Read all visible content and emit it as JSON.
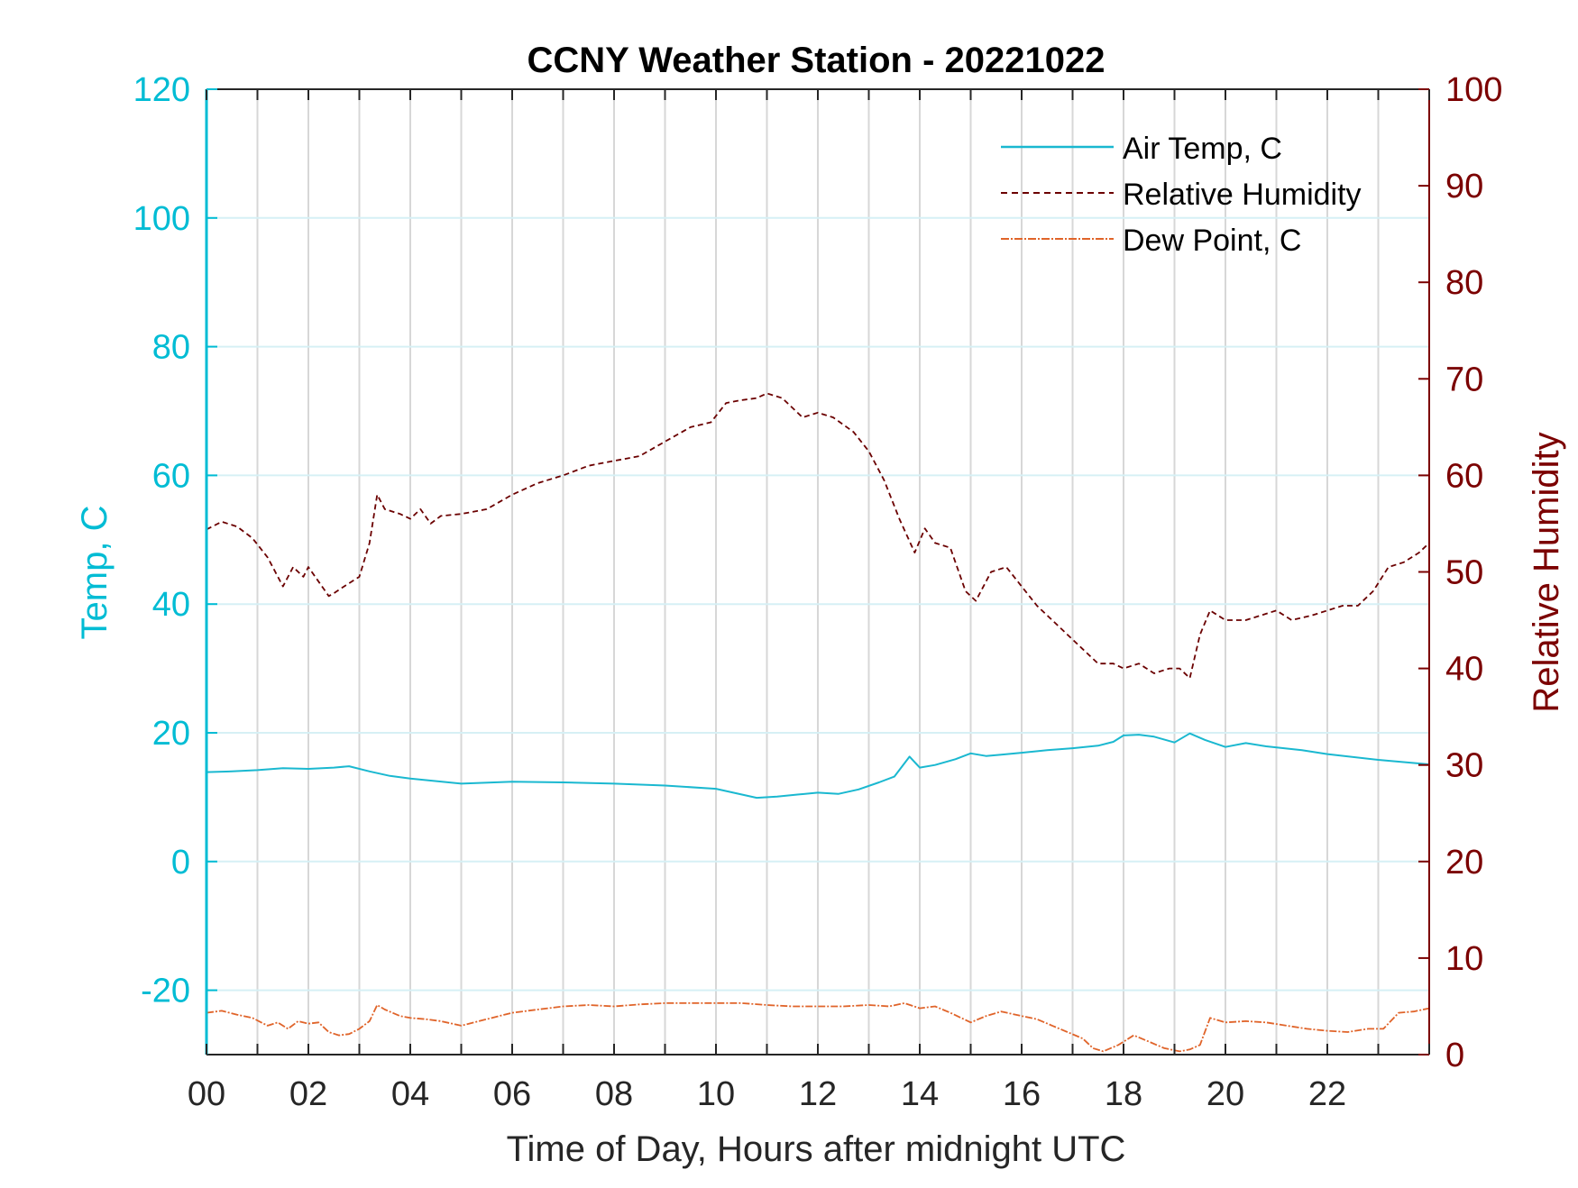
{
  "chart_data": {
    "type": "line",
    "title": "CCNY Weather Station - 20221022",
    "xlabel": "Time of Day, Hours after midnight UTC",
    "ylabel_left": "Temp, C",
    "ylabel_right": "Relative Humidity",
    "xlim": [
      0,
      24
    ],
    "ylim_left": [
      -30,
      120
    ],
    "ylim_right": [
      0,
      100
    ],
    "x_ticks": [
      0,
      2,
      4,
      6,
      8,
      10,
      12,
      14,
      16,
      18,
      20,
      22
    ],
    "x_tick_labels": [
      "00",
      "02",
      "04",
      "06",
      "08",
      "10",
      "12",
      "14",
      "16",
      "18",
      "20",
      "22"
    ],
    "y_left_ticks": [
      -20,
      0,
      20,
      40,
      60,
      80,
      100,
      120
    ],
    "y_left_tick_labels": [
      "-20",
      "0",
      "20",
      "40",
      "60",
      "80",
      "100",
      "120"
    ],
    "y_right_ticks": [
      0,
      10,
      20,
      30,
      40,
      50,
      60,
      70,
      80,
      90,
      100
    ],
    "y_right_tick_labels": [
      "0",
      "10",
      "20",
      "30",
      "40",
      "50",
      "60",
      "70",
      "80",
      "90",
      "100"
    ],
    "grid": true,
    "legend_position": "top-right",
    "colors": {
      "left_axis": "#00bcd4",
      "right_axis": "#7b0000",
      "air_temp": "#1ab8d0",
      "humidity": "#6b0000",
      "dew_point": "#e0642a",
      "grid_vertical": "#d7d7d7",
      "grid_horizontal": "#d6f0f5"
    },
    "series": [
      {
        "name": "Air Temp, C",
        "axis": "left",
        "style": "solid",
        "x": [
          0,
          0.5,
          1,
          1.5,
          2,
          2.5,
          2.8,
          3.2,
          3.6,
          4,
          5,
          6,
          7,
          8,
          9,
          10,
          10.4,
          10.8,
          11.2,
          11.6,
          12,
          12.4,
          12.8,
          13.2,
          13.5,
          13.8,
          14.0,
          14.3,
          14.7,
          15.0,
          15.3,
          15.6,
          16,
          16.5,
          17,
          17.5,
          17.8,
          18.0,
          18.3,
          18.6,
          19.0,
          19.3,
          19.6,
          20.0,
          20.4,
          20.8,
          21.5,
          22,
          23,
          24
        ],
        "y": [
          13.9,
          14.0,
          14.2,
          14.5,
          14.4,
          14.6,
          14.8,
          14.0,
          13.3,
          12.9,
          12.1,
          12.4,
          12.3,
          12.1,
          11.8,
          11.3,
          10.6,
          9.9,
          10.1,
          10.4,
          10.7,
          10.5,
          11.2,
          12.3,
          13.2,
          16.3,
          14.6,
          15.0,
          15.9,
          16.8,
          16.4,
          16.6,
          16.9,
          17.3,
          17.6,
          18.0,
          18.6,
          19.6,
          19.7,
          19.4,
          18.5,
          19.9,
          18.9,
          17.8,
          18.4,
          17.9,
          17.3,
          16.7,
          15.8,
          15.1
        ]
      },
      {
        "name": "Relative Humidity",
        "axis": "right",
        "style": "dashed",
        "x": [
          0,
          0.3,
          0.6,
          0.9,
          1.2,
          1.5,
          1.7,
          1.9,
          2.0,
          2.2,
          2.4,
          2.5,
          2.7,
          3.0,
          3.2,
          3.35,
          3.5,
          3.8,
          4.0,
          4.2,
          4.4,
          4.6,
          5.0,
          5.5,
          6.0,
          6.5,
          7.0,
          7.5,
          8.0,
          8.5,
          9.0,
          9.5,
          9.9,
          10.2,
          10.5,
          10.8,
          11.0,
          11.3,
          11.7,
          12.0,
          12.3,
          12.7,
          13.0,
          13.3,
          13.6,
          13.9,
          14.1,
          14.3,
          14.6,
          14.9,
          15.1,
          15.4,
          15.7,
          16.0,
          16.3,
          16.6,
          16.9,
          17.2,
          17.5,
          17.8,
          18.0,
          18.3,
          18.6,
          18.9,
          19.1,
          19.3,
          19.5,
          19.7,
          20.0,
          20.4,
          20.7,
          21.0,
          21.3,
          21.7,
          22.0,
          22.3,
          22.6,
          22.9,
          23.2,
          23.5,
          23.8,
          24
        ],
        "y": [
          54.4,
          55.2,
          54.7,
          53.5,
          51.5,
          48.5,
          50.5,
          49.5,
          50.5,
          49.0,
          47.5,
          47.8,
          48.5,
          49.5,
          53.0,
          58.0,
          56.5,
          56.0,
          55.5,
          56.5,
          55.0,
          55.8,
          56.0,
          56.5,
          58.0,
          59.2,
          60.0,
          61.0,
          61.5,
          62.0,
          63.5,
          65.0,
          65.5,
          67.5,
          67.8,
          68.0,
          68.5,
          68.0,
          66.0,
          66.5,
          66.0,
          64.5,
          62.5,
          59.5,
          55.5,
          52.0,
          54.5,
          53.0,
          52.5,
          48.0,
          47.0,
          50.0,
          50.5,
          48.5,
          46.5,
          45.0,
          43.5,
          42.0,
          40.5,
          40.5,
          40.0,
          40.5,
          39.5,
          40.0,
          40.0,
          39.0,
          43.5,
          46.0,
          45.0,
          45.0,
          45.5,
          46.0,
          45.0,
          45.5,
          46.0,
          46.5,
          46.5,
          48.0,
          50.5,
          51.0,
          52.0,
          53.0
        ]
      },
      {
        "name": "Dew Point, C",
        "axis": "left",
        "style": "dashdot",
        "x": [
          0,
          0.3,
          0.6,
          0.9,
          1.2,
          1.4,
          1.6,
          1.8,
          2.0,
          2.2,
          2.4,
          2.6,
          2.8,
          3.0,
          3.2,
          3.35,
          3.5,
          3.8,
          4.0,
          4.3,
          4.6,
          5.0,
          5.5,
          6.0,
          6.5,
          7.0,
          7.5,
          8.0,
          8.5,
          9.0,
          9.5,
          10.0,
          10.5,
          11.0,
          11.5,
          12.0,
          12.5,
          13.0,
          13.4,
          13.7,
          14.0,
          14.3,
          14.6,
          15.0,
          15.3,
          15.6,
          16.0,
          16.3,
          16.6,
          16.9,
          17.2,
          17.4,
          17.6,
          17.9,
          18.2,
          18.5,
          18.8,
          19.1,
          19.3,
          19.5,
          19.7,
          20.0,
          20.4,
          20.8,
          21.2,
          21.6,
          22.0,
          22.4,
          22.8,
          23.1,
          23.4,
          23.7,
          24
        ],
        "y": [
          -23.5,
          -23.2,
          -23.8,
          -24.3,
          -25.5,
          -25.0,
          -26.0,
          -24.8,
          -25.2,
          -25.0,
          -26.5,
          -27.0,
          -26.8,
          -26.0,
          -24.8,
          -22.3,
          -23.0,
          -24.0,
          -24.3,
          -24.5,
          -24.8,
          -25.5,
          -24.5,
          -23.5,
          -23.0,
          -22.5,
          -22.3,
          -22.5,
          -22.2,
          -22.0,
          -22.0,
          -22.0,
          -22.0,
          -22.3,
          -22.5,
          -22.5,
          -22.5,
          -22.3,
          -22.5,
          -22.0,
          -22.8,
          -22.5,
          -23.5,
          -25.0,
          -24.0,
          -23.3,
          -24.0,
          -24.5,
          -25.5,
          -26.5,
          -27.5,
          -29.0,
          -29.5,
          -28.5,
          -27.0,
          -28.0,
          -29.0,
          -29.5,
          -29.2,
          -28.5,
          -24.3,
          -25.0,
          -24.8,
          -25.0,
          -25.5,
          -26.0,
          -26.3,
          -26.5,
          -26.0,
          -26.0,
          -23.5,
          -23.3,
          -22.8
        ]
      }
    ]
  }
}
